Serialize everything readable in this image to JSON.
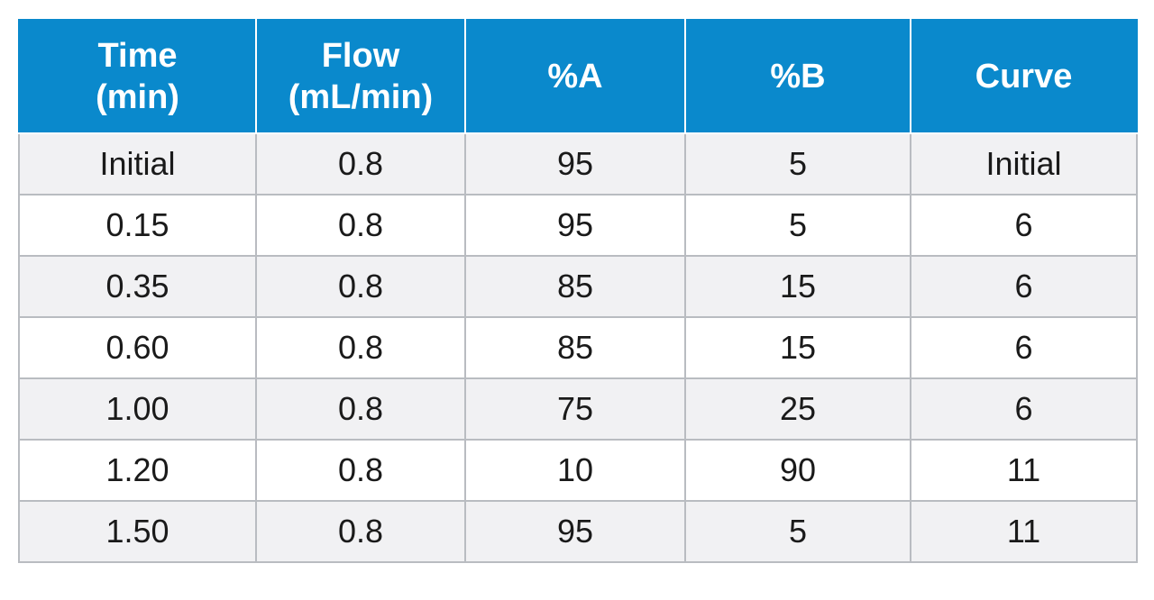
{
  "table": {
    "headers": [
      {
        "line1": "Time",
        "line2": "(min)"
      },
      {
        "line1": "Flow",
        "line2": "(mL/min)"
      },
      {
        "line1": "%A",
        "line2": ""
      },
      {
        "line1": "%B",
        "line2": ""
      },
      {
        "line1": "Curve",
        "line2": ""
      }
    ],
    "rows": [
      [
        "Initial",
        "0.8",
        "95",
        "5",
        "Initial"
      ],
      [
        "0.15",
        "0.8",
        "95",
        "5",
        "6"
      ],
      [
        "0.35",
        "0.8",
        "85",
        "15",
        "6"
      ],
      [
        "0.60",
        "0.8",
        "85",
        "15",
        "6"
      ],
      [
        "1.00",
        "0.8",
        "75",
        "25",
        "6"
      ],
      [
        "1.20",
        "0.8",
        "10",
        "90",
        "11"
      ],
      [
        "1.50",
        "0.8",
        "95",
        "5",
        "11"
      ]
    ]
  },
  "colors": {
    "header_bg": "#0a89cc",
    "header_text": "#ffffff",
    "row_odd_bg": "#f1f1f3",
    "row_even_bg": "#ffffff",
    "grid": "#b9bcc1"
  }
}
